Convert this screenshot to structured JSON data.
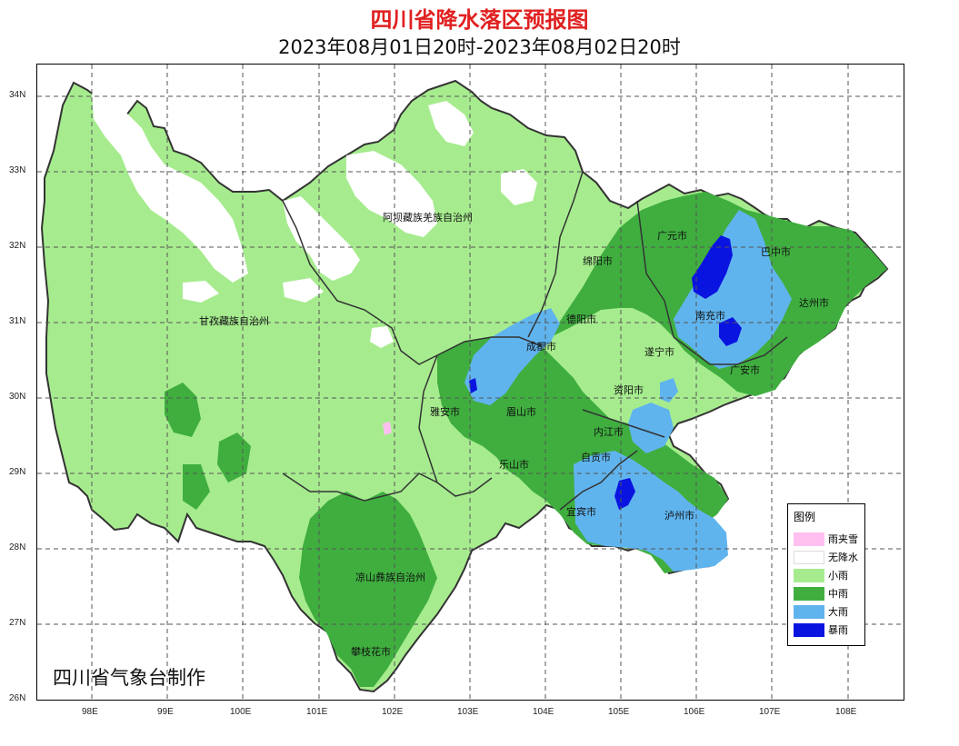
{
  "title": "四川省降水落区预报图",
  "subtitle": "2023年08月01日20时-2023年08月02日20时",
  "credit": "四川省气象台制作",
  "axes": {
    "lat_labels": [
      "34N",
      "33N",
      "32N",
      "31N",
      "30N",
      "29N",
      "28N",
      "27N",
      "26N"
    ],
    "lon_labels": [
      "98E",
      "99E",
      "100E",
      "101E",
      "102E",
      "103E",
      "104E",
      "105E",
      "106E",
      "107E",
      "108E"
    ]
  },
  "cities": [
    {
      "name": "阿坝藏族羌族自治州"
    },
    {
      "name": "甘孜藏族自治州"
    },
    {
      "name": "凉山彝族自治州"
    },
    {
      "name": "攀枝花市"
    },
    {
      "name": "广元市"
    },
    {
      "name": "巴中市"
    },
    {
      "name": "绵阳市"
    },
    {
      "name": "达州市"
    },
    {
      "name": "德阳市"
    },
    {
      "name": "南充市"
    },
    {
      "name": "成都市"
    },
    {
      "name": "遂宁市"
    },
    {
      "name": "广安市"
    },
    {
      "name": "资阳市"
    },
    {
      "name": "雅安市"
    },
    {
      "name": "眉山市"
    },
    {
      "name": "内江市"
    },
    {
      "name": "自贡市"
    },
    {
      "name": "乐山市"
    },
    {
      "name": "宜宾市"
    },
    {
      "name": "泸州市"
    }
  ],
  "legend": {
    "title": "图例",
    "items": [
      {
        "label": "雨夹雪",
        "color": "#ffc0f0"
      },
      {
        "label": "无降水",
        "color": "#ffffff"
      },
      {
        "label": "小雨",
        "color": "#a6ec8e"
      },
      {
        "label": "中雨",
        "color": "#3fae3f"
      },
      {
        "label": "大雨",
        "color": "#60b4ee"
      },
      {
        "label": "暴雨",
        "color": "#0a14e0"
      }
    ]
  }
}
